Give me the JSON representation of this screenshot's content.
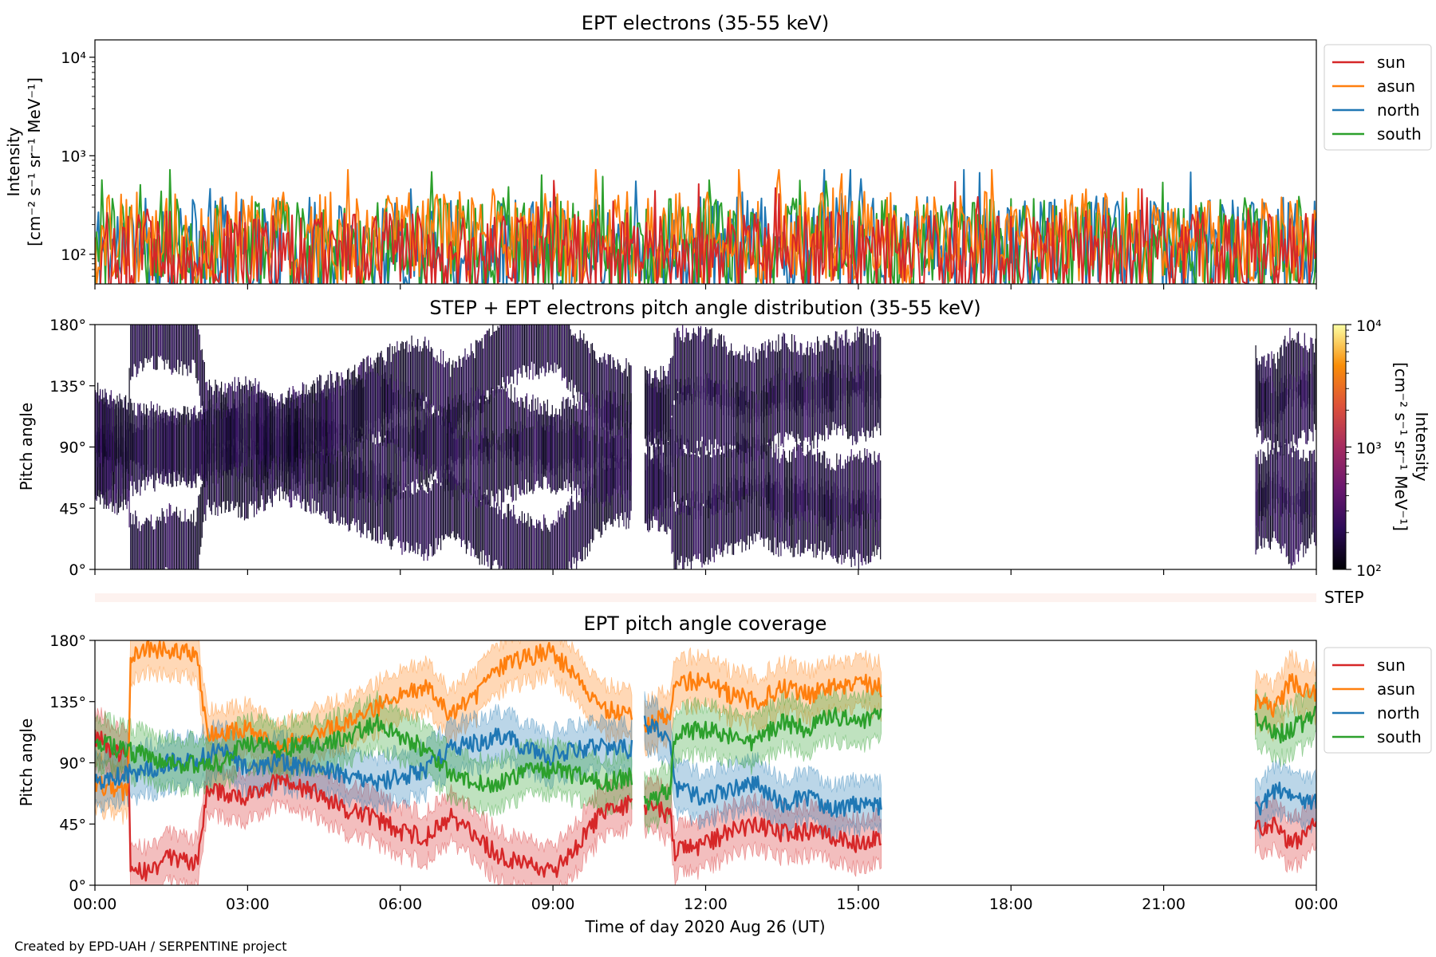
{
  "chart_data": [
    {
      "type": "line",
      "title": "EPT electrons (35-55 keV)",
      "ylabel_line1": "Intensity",
      "ylabel_line2": "[cm⁻² s⁻¹ sr⁻¹ MeV⁻¹]",
      "yscale": "log",
      "ylim": [
        50,
        15000
      ],
      "yticks": [
        {
          "value": 100,
          "label": "10²"
        },
        {
          "value": 1000,
          "label": "10³"
        },
        {
          "value": 10000,
          "label": "10⁴"
        }
      ],
      "xlim_hours": [
        0,
        24
      ],
      "grid": false,
      "legend_position": "outside-right",
      "series": [
        {
          "name": "north",
          "color": "#1f77b4",
          "baseline": 130,
          "spread": 0.65,
          "seed": 11
        },
        {
          "name": "south",
          "color": "#2ca02c",
          "baseline": 140,
          "spread": 0.6,
          "seed": 23
        },
        {
          "name": "asun",
          "color": "#ff7f0e",
          "baseline": 160,
          "spread": 0.6,
          "seed": 37
        },
        {
          "name": "sun",
          "color": "#d62728",
          "baseline": 110,
          "spread": 0.55,
          "seed": 53
        }
      ],
      "legend_order": [
        "sun",
        "asun",
        "north",
        "south"
      ]
    },
    {
      "type": "heatmap",
      "title": "STEP + EPT electrons pitch angle distribution (35-55 keV)",
      "ylabel": "Pitch angle",
      "ylim": [
        0,
        180
      ],
      "yticks": [
        {
          "value": 0,
          "label": "0°"
        },
        {
          "value": 45,
          "label": "45°"
        },
        {
          "value": 90,
          "label": "90°"
        },
        {
          "value": 135,
          "label": "135°"
        },
        {
          "value": 180,
          "label": "180°"
        }
      ],
      "xlim_hours": [
        0,
        24
      ],
      "colorbar": {
        "label_line1": "Intensity",
        "label_line2": "[cm⁻² s⁻¹ sr⁻¹ MeV⁻¹]",
        "scale": "log",
        "range": [
          100,
          10000
        ],
        "ticks": [
          {
            "value": 100,
            "label": "10²"
          },
          {
            "value": 1000,
            "label": "10³"
          },
          {
            "value": 10000,
            "label": "10⁴"
          }
        ],
        "colors": [
          "#000004",
          "#2c0b57",
          "#6a176e",
          "#a52c60",
          "#dd513a",
          "#f98e09",
          "#fcffa4"
        ]
      },
      "data_segments_hours": [
        [
          0,
          10.55
        ],
        [
          10.8,
          15.45
        ],
        [
          22.8,
          24
        ]
      ],
      "cell_colors": [
        "#100828",
        "#2a0f55",
        "#1a0b3c",
        "#3a1266",
        "#08041a"
      ]
    },
    {
      "type": "heatmap",
      "label": "STEP",
      "strip_color": "#fdf2ef"
    },
    {
      "type": "line",
      "title": "EPT pitch angle coverage",
      "ylabel": "Pitch angle",
      "xlabel": "Time of day 2020 Aug 26 (UT)",
      "ylim": [
        0,
        180
      ],
      "yticks": [
        {
          "value": 0,
          "label": "0°"
        },
        {
          "value": 45,
          "label": "45°"
        },
        {
          "value": 90,
          "label": "90°"
        },
        {
          "value": 135,
          "label": "135°"
        },
        {
          "value": 180,
          "label": "180°"
        }
      ],
      "xlim_hours": [
        0,
        24
      ],
      "xticks": [
        {
          "value": 0,
          "label": "00:00"
        },
        {
          "value": 3,
          "label": "03:00"
        },
        {
          "value": 6,
          "label": "06:00"
        },
        {
          "value": 9,
          "label": "09:00"
        },
        {
          "value": 12,
          "label": "12:00"
        },
        {
          "value": 15,
          "label": "15:00"
        },
        {
          "value": 18,
          "label": "18:00"
        },
        {
          "value": 21,
          "label": "21:00"
        },
        {
          "value": 24,
          "label": "00:00"
        }
      ],
      "data_segments_hours": [
        [
          0,
          10.55
        ],
        [
          10.8,
          15.45
        ],
        [
          22.8,
          24
        ]
      ],
      "band_halfwidth_deg": 18,
      "series": [
        {
          "name": "sun",
          "color": "#d62728",
          "points": [
            [
              0,
              110
            ],
            [
              0.5,
              95
            ],
            [
              0.65,
              100
            ],
            [
              0.7,
              15
            ],
            [
              1.0,
              10
            ],
            [
              1.5,
              20
            ],
            [
              2.0,
              15
            ],
            [
              2.2,
              70
            ],
            [
              3.0,
              65
            ],
            [
              3.6,
              78
            ],
            [
              4.5,
              65
            ],
            [
              5.0,
              55
            ],
            [
              5.5,
              50
            ],
            [
              6.0,
              40
            ],
            [
              6.5,
              35
            ],
            [
              7.0,
              50
            ],
            [
              7.5,
              35
            ],
            [
              8.0,
              20
            ],
            [
              8.5,
              15
            ],
            [
              9.0,
              10
            ],
            [
              9.5,
              30
            ],
            [
              10.0,
              55
            ],
            [
              10.55,
              60
            ],
            [
              10.8,
              55
            ],
            [
              11.0,
              60
            ],
            [
              11.3,
              50
            ],
            [
              11.4,
              25
            ],
            [
              12.0,
              30
            ],
            [
              12.5,
              40
            ],
            [
              13.0,
              45
            ],
            [
              13.5,
              38
            ],
            [
              14.0,
              40
            ],
            [
              14.5,
              35
            ],
            [
              15.0,
              30
            ],
            [
              15.45,
              35
            ],
            [
              22.8,
              40
            ],
            [
              23.2,
              45
            ],
            [
              23.5,
              30
            ],
            [
              24,
              45
            ]
          ]
        },
        {
          "name": "asun",
          "color": "#ff7f0e",
          "points": [
            [
              0,
              75
            ],
            [
              0.5,
              68
            ],
            [
              0.65,
              70
            ],
            [
              0.7,
              165
            ],
            [
              1.0,
              175
            ],
            [
              1.5,
              172
            ],
            [
              2.0,
              170
            ],
            [
              2.2,
              110
            ],
            [
              3.0,
              115
            ],
            [
              3.6,
              100
            ],
            [
              4.5,
              115
            ],
            [
              5.0,
              120
            ],
            [
              5.5,
              130
            ],
            [
              6.0,
              140
            ],
            [
              6.5,
              145
            ],
            [
              7.0,
              125
            ],
            [
              7.5,
              140
            ],
            [
              8.0,
              160
            ],
            [
              8.5,
              168
            ],
            [
              9.0,
              172
            ],
            [
              9.5,
              150
            ],
            [
              10.0,
              130
            ],
            [
              10.55,
              125
            ],
            [
              10.8,
              115
            ],
            [
              11.0,
              120
            ],
            [
              11.3,
              125
            ],
            [
              11.4,
              150
            ],
            [
              12.0,
              150
            ],
            [
              12.5,
              140
            ],
            [
              13.0,
              135
            ],
            [
              13.5,
              145
            ],
            [
              14.0,
              140
            ],
            [
              14.5,
              145
            ],
            [
              15.0,
              150
            ],
            [
              15.45,
              145
            ],
            [
              22.8,
              135
            ],
            [
              23.2,
              130
            ],
            [
              23.5,
              150
            ],
            [
              24,
              140
            ]
          ]
        },
        {
          "name": "north",
          "color": "#1f77b4",
          "points": [
            [
              0,
              75
            ],
            [
              0.5,
              80
            ],
            [
              1.0,
              85
            ],
            [
              1.5,
              90
            ],
            [
              2.0,
              92
            ],
            [
              2.5,
              100
            ],
            [
              3.0,
              85
            ],
            [
              3.6,
              90
            ],
            [
              4.5,
              85
            ],
            [
              5.0,
              80
            ],
            [
              5.5,
              75
            ],
            [
              6.0,
              80
            ],
            [
              6.5,
              85
            ],
            [
              7.0,
              100
            ],
            [
              7.5,
              105
            ],
            [
              8.0,
              110
            ],
            [
              8.5,
              100
            ],
            [
              9.0,
              95
            ],
            [
              9.5,
              100
            ],
            [
              10.0,
              102
            ],
            [
              10.55,
              100
            ],
            [
              10.8,
              120
            ],
            [
              11.0,
              115
            ],
            [
              11.3,
              110
            ],
            [
              11.4,
              70
            ],
            [
              12.0,
              65
            ],
            [
              12.5,
              70
            ],
            [
              13.0,
              75
            ],
            [
              13.5,
              60
            ],
            [
              14.0,
              65
            ],
            [
              14.5,
              55
            ],
            [
              15.0,
              60
            ],
            [
              15.45,
              58
            ],
            [
              22.8,
              55
            ],
            [
              23.2,
              70
            ],
            [
              23.5,
              65
            ],
            [
              24,
              60
            ]
          ]
        },
        {
          "name": "south",
          "color": "#2ca02c",
          "points": [
            [
              0,
              105
            ],
            [
              0.5,
              100
            ],
            [
              1.0,
              95
            ],
            [
              1.5,
              90
            ],
            [
              2.0,
              88
            ],
            [
              2.5,
              90
            ],
            [
              3.0,
              105
            ],
            [
              3.6,
              100
            ],
            [
              4.5,
              105
            ],
            [
              5.0,
              110
            ],
            [
              5.5,
              120
            ],
            [
              6.0,
              110
            ],
            [
              6.5,
              100
            ],
            [
              7.0,
              80
            ],
            [
              7.5,
              75
            ],
            [
              8.0,
              75
            ],
            [
              8.5,
              85
            ],
            [
              9.0,
              85
            ],
            [
              9.5,
              80
            ],
            [
              10.0,
              75
            ],
            [
              10.55,
              80
            ],
            [
              10.8,
              60
            ],
            [
              11.0,
              65
            ],
            [
              11.3,
              70
            ],
            [
              11.4,
              110
            ],
            [
              12.0,
              115
            ],
            [
              12.5,
              110
            ],
            [
              13.0,
              105
            ],
            [
              13.5,
              120
            ],
            [
              14.0,
              115
            ],
            [
              14.5,
              125
            ],
            [
              15.0,
              120
            ],
            [
              15.45,
              125
            ],
            [
              22.8,
              125
            ],
            [
              23.2,
              110
            ],
            [
              23.5,
              115
            ],
            [
              24,
              125
            ]
          ]
        }
      ],
      "legend_order": [
        "sun",
        "asun",
        "north",
        "south"
      ]
    }
  ],
  "footer": {
    "credit": "Created by EPD-UAH / SERPENTINE project"
  }
}
